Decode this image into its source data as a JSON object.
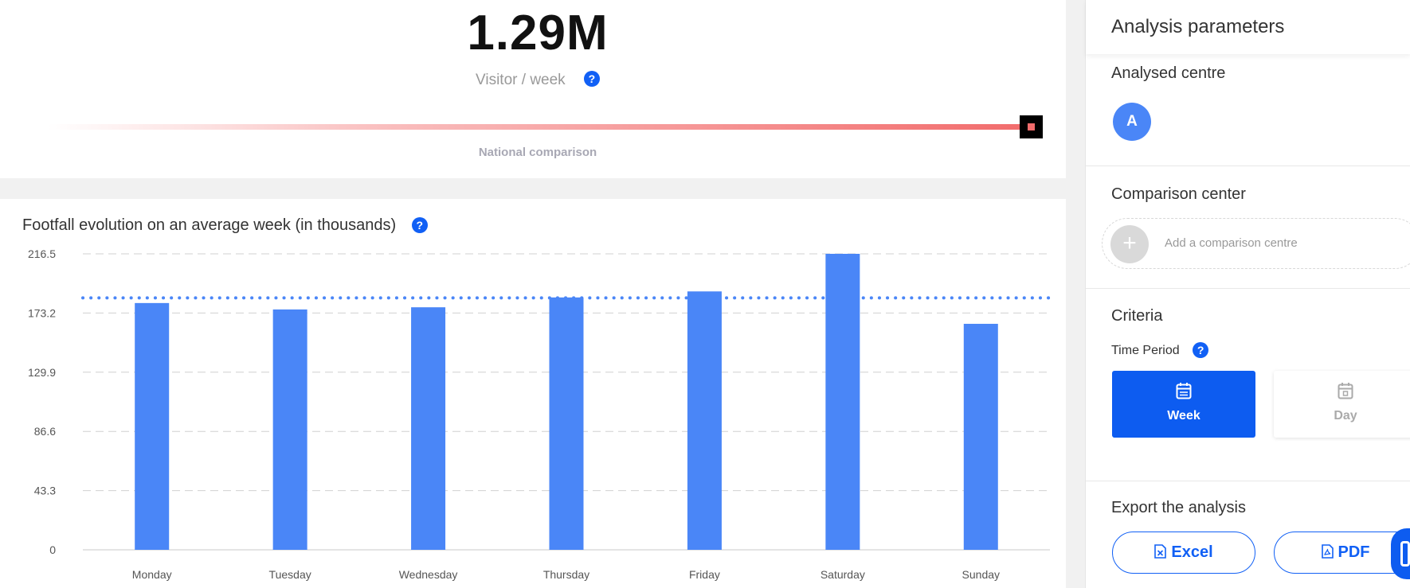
{
  "kpi": {
    "value": "1.29M",
    "subtitle": "Visitor / week",
    "comparison_label": "National comparison"
  },
  "chart": {
    "title": "Footfall evolution on an average week (in thousands)"
  },
  "chart_data": {
    "type": "bar",
    "title": "Footfall evolution on an average week (in thousands)",
    "categories": [
      "Monday",
      "Tuesday",
      "Wednesday",
      "Thursday",
      "Friday",
      "Saturday",
      "Sunday"
    ],
    "values": [
      180.5,
      175.8,
      177.4,
      184.6,
      189.0,
      216.5,
      165.3
    ],
    "yticks": [
      "0",
      "43.3",
      "86.6",
      "129.9",
      "173.2",
      "216.5"
    ],
    "ylim": [
      0,
      216.5
    ],
    "reference_line": 184.3,
    "grid": "horizontal dashed",
    "colors": {
      "bar": "#4a86f7",
      "reference": "#4a86f7",
      "grid": "#d0d0d0"
    }
  },
  "sidebar": {
    "title": "Analysis parameters",
    "analysed_label": "Analysed centre",
    "analysed_avatar": "A",
    "comparison_label": "Comparison center",
    "add_comparison": "Add a comparison centre",
    "add_symbol": "+",
    "criteria_label": "Criteria",
    "time_period_label": "Time Period",
    "week_label": "Week",
    "day_label": "Day",
    "export_label": "Export the analysis",
    "excel_label": "Excel",
    "pdf_label": "PDF"
  },
  "help_symbol": "?",
  "icons": {
    "help": "help-circle-icon",
    "calendar": "calendar-icon",
    "excel": "excel-file-icon",
    "pdf": "pdf-file-icon",
    "chat": "chat-icon"
  },
  "colors": {
    "accent": "#1160f5",
    "bar": "#4a86f7",
    "gauge": "#f26c6c"
  }
}
